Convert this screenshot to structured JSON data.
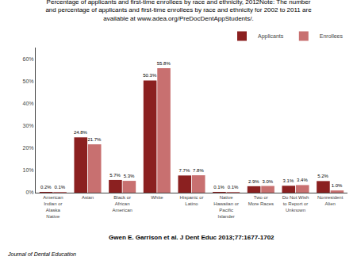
{
  "chart_data": {
    "type": "bar",
    "title": "Percentage of applicants and first-time enrollees by race and ethnicity, 2012Note: The number\nand percentage of applicants and first-time enrollees by race and ethnicity for 2002 to 2011 are\navailable at www.adea.org/PreDocDentAppStudents/.",
    "categories": [
      "American\nIndian or\nAlaska\nNative",
      "Asian",
      "Black or\nAfrican\nAmerican",
      "White",
      "Hispanic or\nLatino",
      "Native\nHawaiian or\nPacific\nIslander",
      "Two or\nMore Races",
      "Do Not Wish\nto Report or\nUnknown",
      "Nonresident\nAlien"
    ],
    "series": [
      {
        "name": "Applicants",
        "color": "#8B2020",
        "values": [
          0.2,
          24.8,
          5.7,
          50.3,
          7.7,
          0.1,
          2.9,
          3.1,
          5.2
        ],
        "value_labels": [
          "0.2%",
          "24.8%",
          "5.7%",
          "50.3%",
          "7.7%",
          "0.1%",
          "2.9%",
          "3.1%",
          "5.2%"
        ]
      },
      {
        "name": "Enrollees",
        "color": "#C87070",
        "values": [
          0.1,
          21.7,
          5.3,
          55.8,
          7.8,
          0.1,
          3.0,
          3.4,
          1.0
        ],
        "value_labels": [
          "0.1%",
          "21.7%",
          "5.3%",
          "55.8%",
          "7.8%",
          "0.1%",
          "3.0%",
          "3.4%",
          "1.0%"
        ]
      }
    ],
    "ylim": [
      0,
      65
    ],
    "yticks": [
      {
        "value": 0,
        "label": "0%"
      },
      {
        "value": 10,
        "label": "10%"
      },
      {
        "value": 20,
        "label": "20%"
      },
      {
        "value": 30,
        "label": "30%"
      },
      {
        "value": 40,
        "label": "40%"
      },
      {
        "value": 50,
        "label": "50%"
      },
      {
        "value": 60,
        "label": "60%"
      }
    ],
    "data_labels": true,
    "grid": false,
    "legend": "upper right",
    "annotations": [
      "Gwen E. Garrison et al. J Dent Educ 2013;77:1677-1702",
      "Journal of Dental Education"
    ]
  }
}
